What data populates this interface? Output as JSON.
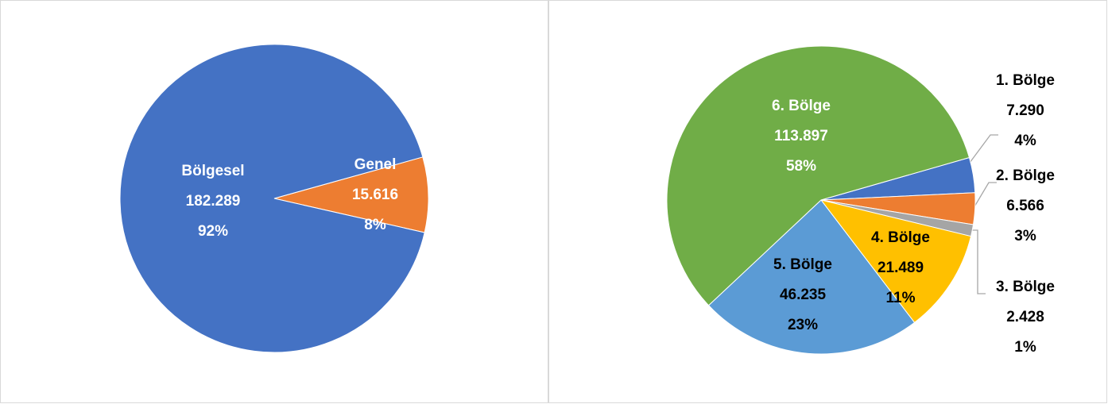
{
  "chart_data": [
    {
      "type": "pie",
      "categories": [
        "Genel",
        "Bölgesel"
      ],
      "values": [
        15616,
        182289
      ],
      "value_labels": [
        "15.616",
        "182.289"
      ],
      "percent_labels": [
        "8%",
        "92%"
      ],
      "colors": [
        "#ed7d31",
        "#4472c4"
      ]
    },
    {
      "type": "pie",
      "categories": [
        "1. Bölge",
        "2. Bölge",
        "3. Bölge",
        "4. Bölge",
        "5. Bölge",
        "6. Bölge"
      ],
      "values": [
        7290,
        6566,
        2428,
        21489,
        46235,
        113897
      ],
      "value_labels": [
        "7.290",
        "6.566",
        "2.428",
        "21.489",
        "46.235",
        "113.897"
      ],
      "percent_labels": [
        "4%",
        "3%",
        "1%",
        "11%",
        "23%",
        "58%"
      ],
      "colors": [
        "#4472c4",
        "#ed7d31",
        "#a5a5a5",
        "#ffc000",
        "#5b9bd5",
        "#70ad47"
      ]
    }
  ]
}
